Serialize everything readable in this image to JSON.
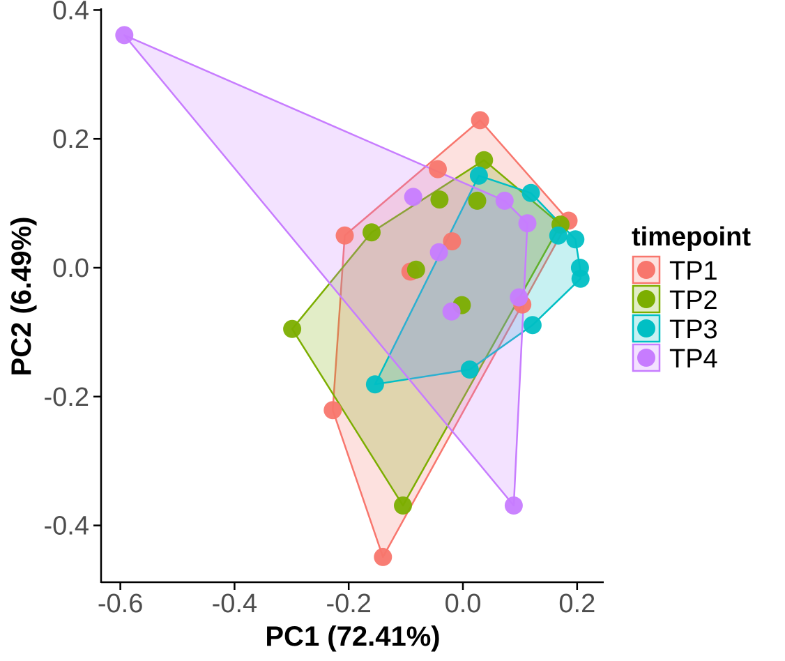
{
  "chart_data": {
    "type": "scatter",
    "title": "",
    "xlabel": "PC1 (72.41%)",
    "ylabel": "PC2 (6.49%)",
    "xlim": [
      -0.63,
      0.245
    ],
    "ylim": [
      -0.49,
      0.4
    ],
    "x_ticks": [
      -0.6,
      -0.4,
      -0.2,
      0.0,
      0.2
    ],
    "x_tick_labels": [
      "-0.6",
      "-0.4",
      "-0.2",
      "0.0",
      "0.2"
    ],
    "y_ticks": [
      -0.4,
      -0.2,
      0.0,
      0.2,
      0.4
    ],
    "y_tick_labels": [
      "-0.4",
      "-0.2",
      "0.0",
      "0.2",
      "0.4"
    ],
    "grid": false,
    "hulls": true,
    "legend": {
      "title": "timepoint",
      "placement": "right"
    },
    "series": [
      {
        "name": "TP1",
        "color": "#F8766D",
        "points": [
          [
            0.03,
            0.229
          ],
          [
            -0.044,
            0.153
          ],
          [
            -0.207,
            0.05
          ],
          [
            -0.019,
            0.041
          ],
          [
            -0.092,
            -0.006
          ],
          [
            0.185,
            0.073
          ],
          [
            0.104,
            -0.057
          ],
          [
            -0.228,
            -0.221
          ],
          [
            -0.14,
            -0.449
          ]
        ]
      },
      {
        "name": "TP2",
        "color": "#7CAE00",
        "points": [
          [
            0.037,
            0.167
          ],
          [
            -0.041,
            0.106
          ],
          [
            0.025,
            0.104
          ],
          [
            -0.16,
            0.055
          ],
          [
            0.171,
            0.067
          ],
          [
            -0.082,
            -0.003
          ],
          [
            -0.002,
            -0.058
          ],
          [
            -0.299,
            -0.095
          ],
          [
            -0.105,
            -0.369
          ]
        ]
      },
      {
        "name": "TP3",
        "color": "#00BFC4",
        "points": [
          [
            0.028,
            0.143
          ],
          [
            0.119,
            0.116
          ],
          [
            0.167,
            0.05
          ],
          [
            0.197,
            0.044
          ],
          [
            0.205,
            0.0
          ],
          [
            0.206,
            -0.017
          ],
          [
            0.122,
            -0.089
          ],
          [
            0.012,
            -0.158
          ],
          [
            -0.154,
            -0.181
          ]
        ]
      },
      {
        "name": "TP4",
        "color": "#C77CFF",
        "points": [
          [
            -0.593,
            0.361
          ],
          [
            -0.087,
            0.11
          ],
          [
            0.073,
            0.104
          ],
          [
            0.113,
            0.069
          ],
          [
            -0.042,
            0.024
          ],
          [
            0.098,
            -0.046
          ],
          [
            -0.02,
            -0.068
          ],
          [
            0.089,
            -0.369
          ]
        ]
      }
    ]
  }
}
